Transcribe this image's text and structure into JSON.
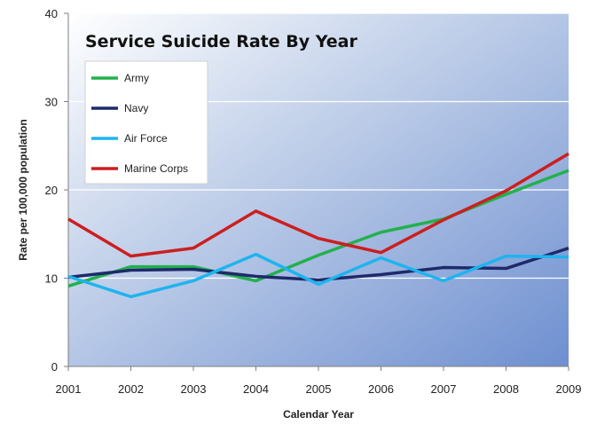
{
  "chart_data": {
    "type": "line",
    "title": "Service Suicide Rate By Year",
    "xlabel": "Calendar Year",
    "ylabel": "Rate per 100,000 population",
    "x": [
      2001,
      2002,
      2003,
      2004,
      2005,
      2006,
      2007,
      2008,
      2009
    ],
    "ylim": [
      0,
      40
    ],
    "yticks": [
      0,
      10,
      20,
      30,
      40
    ],
    "grid": true,
    "legend_position": "top-left",
    "series": [
      {
        "name": "Army",
        "color": "#22b14c",
        "values": [
          9.1,
          11.3,
          11.3,
          9.7,
          12.6,
          15.2,
          16.7,
          19.5,
          22.2
        ]
      },
      {
        "name": "Navy",
        "color": "#1f2a6b",
        "values": [
          10.1,
          10.9,
          11.0,
          10.2,
          9.8,
          10.4,
          11.2,
          11.1,
          13.4
        ]
      },
      {
        "name": "Air Force",
        "color": "#1eb4ef",
        "values": [
          10.2,
          7.9,
          9.7,
          12.7,
          9.3,
          12.3,
          9.7,
          12.5,
          12.4
        ]
      },
      {
        "name": "Marine Corps",
        "color": "#cc1f1f",
        "values": [
          16.7,
          12.5,
          13.4,
          17.6,
          14.5,
          12.9,
          16.6,
          19.9,
          24.1
        ]
      }
    ]
  }
}
